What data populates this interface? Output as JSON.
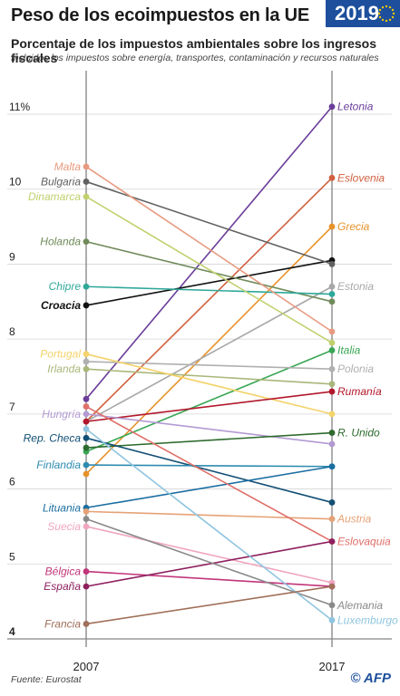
{
  "title": "Peso de los ecoimpuestos en la UE",
  "badge": "2019",
  "subtitle": "Porcentaje de los impuestos ambientales sobre los ingresos fiscales",
  "note": "Incluidos los impuestos sobre energía, transportes, contaminación y recursos naturales",
  "source": "Fuente: Eurostat",
  "logo": "© AFP",
  "colors": {
    "badge": "#1d4f9c",
    "grid": "#bbbbbb",
    "axis": "#888888"
  },
  "chart_data": {
    "type": "line",
    "x": [
      "2007",
      "2017"
    ],
    "ylim": [
      4,
      11.6
    ],
    "yticks": [
      {
        "value": 4,
        "label": "4"
      },
      {
        "value": 5,
        "label": "5"
      },
      {
        "value": 6,
        "label": "6"
      },
      {
        "value": 7,
        "label": "7"
      },
      {
        "value": 8,
        "label": "8"
      },
      {
        "value": 9,
        "label": "9"
      },
      {
        "value": 10,
        "label": "10"
      },
      {
        "value": 11,
        "label": "11%"
      }
    ],
    "series": [
      {
        "name": "Letonia",
        "values": [
          7.2,
          11.1
        ],
        "color": "#6a3d9a",
        "label_side": "right"
      },
      {
        "name": "Eslovenia",
        "values": [
          6.9,
          10.15
        ],
        "color": "#d0603f",
        "label_side": "right"
      },
      {
        "name": "Grecia",
        "values": [
          6.2,
          9.5
        ],
        "color": "#e8922a",
        "label_side": "right"
      },
      {
        "name": "Croacia",
        "values": [
          8.45,
          9.05
        ],
        "color": "#111111",
        "label_side": "left"
      },
      {
        "name": "Bulgaria",
        "values": [
          10.1,
          9.0
        ],
        "color": "#616161",
        "label_side": "left"
      },
      {
        "name": "Estonia",
        "values": [
          6.9,
          8.7
        ],
        "color": "#a8a8a8",
        "label_side": "right"
      },
      {
        "name": "Holanda",
        "values": [
          9.3,
          8.5
        ],
        "color": "#6f8a5a",
        "label_side": "left"
      },
      {
        "name": "Chipre",
        "values": [
          8.7,
          8.6
        ],
        "color": "#2ea89a",
        "label_side": "left"
      },
      {
        "name": "Malta",
        "values": [
          10.3,
          8.1
        ],
        "color": "#e89a80",
        "label_side": "left"
      },
      {
        "name": "Dinamarca",
        "values": [
          9.9,
          7.95
        ],
        "color": "#c2d06e",
        "label_side": "left"
      },
      {
        "name": "Italia",
        "values": [
          6.5,
          7.85
        ],
        "color": "#3aa655",
        "label_side": "right"
      },
      {
        "name": "Irlanda",
        "values": [
          7.6,
          7.4
        ],
        "color": "#a9b77a",
        "label_side": "left"
      },
      {
        "name": "Polonia",
        "values": [
          7.7,
          7.6
        ],
        "color": "#b0b0b0",
        "label_side": "right"
      },
      {
        "name": "Portugal",
        "values": [
          7.8,
          7.0
        ],
        "color": "#f3d36b",
        "label_side": "left"
      },
      {
        "name": "Rumanía",
        "values": [
          6.9,
          7.3
        ],
        "color": "#b2182b",
        "label_side": "right"
      },
      {
        "name": "Hungría",
        "values": [
          7.0,
          6.6
        ],
        "color": "#b39ad2",
        "label_side": "left"
      },
      {
        "name": "R. Unido",
        "values": [
          6.55,
          6.75
        ],
        "color": "#2d6a2d",
        "label_side": "right"
      },
      {
        "name": "Rep. Checa",
        "values": [
          6.68,
          5.82
        ],
        "color": "#124f75",
        "label_side": "left"
      },
      {
        "name": "Finlandia",
        "values": [
          6.32,
          6.3
        ],
        "color": "#2d8bb0",
        "label_side": "left"
      },
      {
        "name": "Lituania",
        "values": [
          5.75,
          6.3
        ],
        "color": "#1b6ea1",
        "label_side": "left"
      },
      {
        "name": "Austria",
        "values": [
          5.7,
          5.6
        ],
        "color": "#e6a276",
        "label_side": "right"
      },
      {
        "name": "Suecia",
        "values": [
          5.5,
          4.75
        ],
        "color": "#f0a6c0",
        "label_side": "left"
      },
      {
        "name": "Eslovaquia",
        "values": [
          7.1,
          5.3
        ],
        "color": "#e0706a",
        "label_side": "right"
      },
      {
        "name": "Bélgica",
        "values": [
          4.9,
          4.7
        ],
        "color": "#c1357a",
        "label_side": "left"
      },
      {
        "name": "España",
        "values": [
          4.7,
          5.3
        ],
        "color": "#8e1f5e",
        "label_side": "left"
      },
      {
        "name": "Alemania",
        "values": [
          5.6,
          4.45
        ],
        "color": "#8a8a8a",
        "label_side": "right"
      },
      {
        "name": "Luxemburgo",
        "values": [
          6.8,
          4.25
        ],
        "color": "#8fc5e0",
        "label_side": "right"
      },
      {
        "name": "Francia",
        "values": [
          4.2,
          4.7
        ],
        "color": "#a0705a",
        "label_side": "left"
      },
      {
        "name": "Bulgaria_2017_dot",
        "values": [
          null,
          null
        ],
        "color": "#616161",
        "label_side": "none"
      }
    ]
  }
}
